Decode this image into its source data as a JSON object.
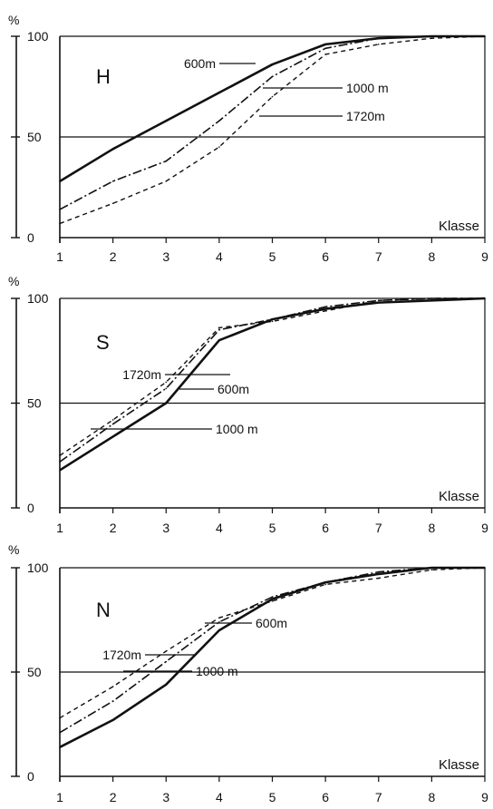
{
  "chart_data": [
    {
      "type": "line",
      "panel_label": "H",
      "ylabel": "%",
      "xlabel": "Klasse",
      "xlim": [
        1,
        9
      ],
      "ylim": [
        0,
        100
      ],
      "x_ticks": [
        "1",
        "2",
        "3",
        "4",
        "5",
        "6",
        "7",
        "8",
        "9"
      ],
      "y_ticks": [
        "0",
        "50",
        "100"
      ],
      "reference_line": 50,
      "x": [
        1,
        2,
        3,
        4,
        5,
        6,
        7,
        8,
        9
      ],
      "series": [
        {
          "name": "600m",
          "style": "solid",
          "values": [
            28,
            44,
            58,
            72,
            86,
            96,
            99,
            100,
            100
          ]
        },
        {
          "name": "1000m",
          "style": "dashdot",
          "values": [
            14,
            28,
            38,
            58,
            80,
            94,
            99,
            100,
            100
          ]
        },
        {
          "name": "1720m",
          "style": "dashed",
          "values": [
            7,
            17,
            28,
            45,
            70,
            91,
            96,
            99,
            100
          ]
        }
      ],
      "annotations": [
        {
          "text": "600m",
          "series": "600m"
        },
        {
          "text": "1000 m",
          "series": "1000m"
        },
        {
          "text": "1720m",
          "series": "1720m"
        }
      ]
    },
    {
      "type": "line",
      "panel_label": "S",
      "ylabel": "%",
      "xlabel": "Klasse",
      "xlim": [
        1,
        9
      ],
      "ylim": [
        0,
        100
      ],
      "x_ticks": [
        "1",
        "2",
        "3",
        "4",
        "5",
        "6",
        "7",
        "8",
        "9"
      ],
      "y_ticks": [
        "0",
        "50",
        "100"
      ],
      "reference_line": 50,
      "x": [
        1,
        2,
        3,
        4,
        5,
        6,
        7,
        8,
        9
      ],
      "series": [
        {
          "name": "600m",
          "style": "solid",
          "values": [
            18,
            34,
            50,
            80,
            90,
            95,
            98,
            99,
            100
          ]
        },
        {
          "name": "1000m",
          "style": "dashdot",
          "values": [
            22,
            40,
            57,
            85,
            90,
            96,
            99,
            100,
            100
          ]
        },
        {
          "name": "1720m",
          "style": "dashed",
          "values": [
            25,
            42,
            60,
            86,
            89,
            94,
            99,
            100,
            100
          ]
        }
      ],
      "annotations": [
        {
          "text": "600m",
          "series": "600m"
        },
        {
          "text": "1000 m",
          "series": "1000m"
        },
        {
          "text": "1720m",
          "series": "1720m"
        }
      ]
    },
    {
      "type": "line",
      "panel_label": "N",
      "ylabel": "%",
      "xlabel": "Klasse",
      "xlim": [
        1,
        9
      ],
      "ylim": [
        0,
        100
      ],
      "x_ticks": [
        "1",
        "2",
        "3",
        "4",
        "5",
        "6",
        "7",
        "8",
        "9"
      ],
      "y_ticks": [
        "0",
        "50",
        "100"
      ],
      "reference_line": 50,
      "x": [
        1,
        2,
        3,
        4,
        5,
        6,
        7,
        8,
        9
      ],
      "series": [
        {
          "name": "600m",
          "style": "solid",
          "values": [
            14,
            27,
            44,
            70,
            85,
            93,
            97,
            100,
            100
          ]
        },
        {
          "name": "1000m",
          "style": "dashdot",
          "values": [
            21,
            36,
            55,
            74,
            86,
            93,
            98,
            100,
            100
          ]
        },
        {
          "name": "1720m",
          "style": "dashed",
          "values": [
            28,
            43,
            60,
            76,
            84,
            92,
            95,
            99,
            100
          ]
        }
      ],
      "annotations": [
        {
          "text": "600m",
          "series": "600m"
        },
        {
          "text": "1000 m",
          "series": "1000m"
        },
        {
          "text": "1720m",
          "series": "1720m"
        }
      ]
    }
  ]
}
